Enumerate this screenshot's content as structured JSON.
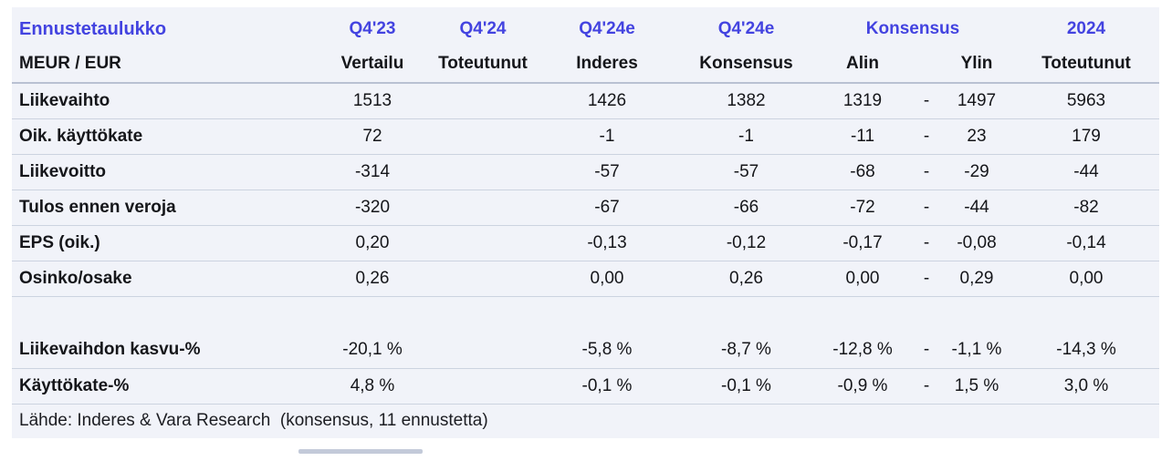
{
  "colors": {
    "accent_header": "#4343e0",
    "table_background": "#f1f3f9",
    "row_divider": "#ccd3e0",
    "header_divider": "#b9c1d2",
    "text": "#15161a",
    "scrollbar": "#c3cad9",
    "page_background": "#ffffff"
  },
  "chart_data": {
    "type": "table",
    "title": "Ennustetaulukko",
    "header_top": {
      "title": "Ennustetaulukko",
      "q423": "Q4'23",
      "q424": "Q4'24",
      "q424e_inderes": "Q4'24e",
      "q424e_konsensus": "Q4'24e",
      "konsensus_span": "Konsensus",
      "y2024": "2024"
    },
    "header_sub": {
      "unit": "MEUR / EUR",
      "vertailu": "Vertailu",
      "toteutunut": "Toteutunut",
      "inderes": "Inderes",
      "konsensus": "Konsensus",
      "alin": "Alin",
      "ylin": "Ylin",
      "toteutunut_2024": "Toteutunut"
    },
    "columns": [
      "MEUR / EUR",
      "Q4'23 Vertailu",
      "Q4'24 Toteutunut",
      "Q4'24e Inderes",
      "Q4'24e Konsensus",
      "Konsensus Alin",
      "",
      "Konsensus Ylin",
      "2024 Toteutunut"
    ],
    "rows": [
      {
        "spacer": false,
        "label": "Liikevaihto",
        "values": [
          "1513",
          "",
          "1426",
          "1382",
          "1319",
          "-",
          "1497",
          "5963"
        ]
      },
      {
        "spacer": false,
        "label": "Oik. käyttökate",
        "values": [
          "72",
          "",
          "-1",
          "-1",
          "-11",
          "-",
          "23",
          "179"
        ]
      },
      {
        "spacer": false,
        "label": "Liikevoitto",
        "values": [
          "-314",
          "",
          "-57",
          "-57",
          "-68",
          "-",
          "-29",
          "-44"
        ]
      },
      {
        "spacer": false,
        "label": "Tulos ennen veroja",
        "values": [
          "-320",
          "",
          "-67",
          "-66",
          "-72",
          "-",
          "-44",
          "-82"
        ]
      },
      {
        "spacer": false,
        "label": "EPS (oik.)",
        "values": [
          "0,20",
          "",
          "-0,13",
          "-0,12",
          "-0,17",
          "-",
          "-0,08",
          "-0,14"
        ]
      },
      {
        "spacer": false,
        "label": "Osinko/osake",
        "values": [
          "0,26",
          "",
          "0,00",
          "0,26",
          "0,00",
          "-",
          "0,29",
          "0,00"
        ]
      },
      {
        "spacer": true,
        "label": "",
        "values": [
          "",
          "",
          "",
          "",
          "",
          "",
          "",
          ""
        ]
      },
      {
        "spacer": false,
        "label": "Liikevaihdon kasvu-%",
        "values": [
          "-20,1 %",
          "",
          "-5,8 %",
          "-8,7 %",
          "-12,8 %",
          "-",
          "-1,1 %",
          "-14,3 %"
        ]
      },
      {
        "spacer": false,
        "label": "Käyttökate-%",
        "values": [
          "4,8 %",
          "",
          "-0,1 %",
          "-0,1 %",
          "-0,9 %",
          "-",
          "1,5 %",
          "3,0 %"
        ]
      }
    ],
    "source": "Lähde: Inderes & Vara Research  (konsensus, 11 ennustetta)"
  }
}
